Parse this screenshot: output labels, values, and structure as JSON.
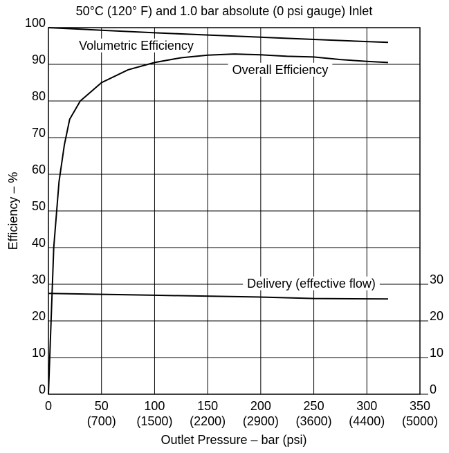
{
  "chart_data": {
    "type": "line",
    "title": "50°C (120° F) and 1.0 bar absolute (0 psi gauge) Inlet",
    "x_label": "Outlet Pressure – bar (psi)",
    "y_label": "Efficiency – %",
    "xlim": [
      0,
      350
    ],
    "xticks": [
      0,
      50,
      100,
      150,
      200,
      250,
      300,
      350
    ],
    "xtick_sublabels": [
      null,
      "(700)",
      "(1500)",
      "(2200)",
      "(2900)",
      "(3600)",
      "(4400)",
      "(5000)"
    ],
    "ylim": [
      0,
      100
    ],
    "yticks": [
      0,
      10,
      20,
      30,
      40,
      50,
      60,
      70,
      80,
      90,
      100
    ],
    "y2lim": [
      0,
      100
    ],
    "y2ticks": [
      0,
      10,
      20,
      30
    ],
    "grid": true,
    "series": [
      {
        "name": "Volumetric Efficiency",
        "color": "#000000",
        "x": [
          0,
          50,
          100,
          150,
          200,
          250,
          300,
          320
        ],
        "values": [
          100,
          99.3,
          98.6,
          98,
          97.4,
          96.8,
          96.2,
          96
        ]
      },
      {
        "name": "Overall Efficiency",
        "color": "#000000",
        "x": [
          0,
          5,
          10,
          15,
          20,
          30,
          50,
          75,
          100,
          125,
          150,
          175,
          200,
          225,
          250,
          275,
          300,
          320
        ],
        "values": [
          0,
          40,
          58,
          68,
          75,
          80,
          85,
          88.5,
          90.5,
          91.8,
          92.5,
          92.8,
          92.6,
          92.2,
          92,
          91.3,
          90.8,
          90.5
        ]
      },
      {
        "name": "Delivery (effective flow)",
        "color": "#000000",
        "axis": "y2",
        "x": [
          0,
          100,
          200,
          250,
          320
        ],
        "values": [
          27.5,
          27,
          26.5,
          26.1,
          26
        ]
      }
    ]
  }
}
